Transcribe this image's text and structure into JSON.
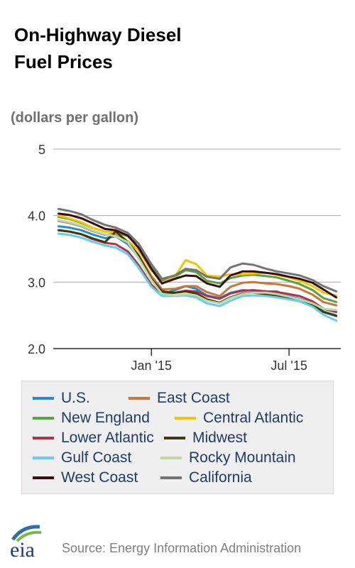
{
  "title": "On-Highway Diesel\nFuel Prices",
  "units": "(dollars per gallon)",
  "source": "Source: Energy Information Administration",
  "logo_text": "eia",
  "chart_data": {
    "type": "line",
    "ylim": [
      2.0,
      5.0
    ],
    "y_ticks": [
      {
        "value": 5.0,
        "label": "5"
      },
      {
        "value": 4.0,
        "label": "4.0"
      },
      {
        "value": 3.0,
        "label": "3.0"
      },
      {
        "value": 2.0,
        "label": "2.0"
      }
    ],
    "x": [
      "2014-09-01",
      "2014-09-15",
      "2014-10-01",
      "2014-10-15",
      "2014-11-01",
      "2014-11-15",
      "2014-12-01",
      "2014-12-15",
      "2015-01-01",
      "2015-01-15",
      "2015-02-01",
      "2015-02-15",
      "2015-03-01",
      "2015-03-15",
      "2015-04-01",
      "2015-04-15",
      "2015-05-01",
      "2015-05-15",
      "2015-06-01",
      "2015-06-15",
      "2015-07-01",
      "2015-07-15",
      "2015-08-01",
      "2015-08-15",
      "2015-09-01"
    ],
    "x_ticks": [
      {
        "value": "2015-01-01",
        "label": "Jan '15"
      },
      {
        "value": "2015-07-01",
        "label": "Jul '15"
      }
    ],
    "grid": true,
    "legend_position": "bottom",
    "series": [
      {
        "name": "U.S.",
        "color": "#1f8fd1",
        "values": [
          3.84,
          3.82,
          3.78,
          3.72,
          3.66,
          3.69,
          3.57,
          3.38,
          3.05,
          2.82,
          2.88,
          2.94,
          2.9,
          2.8,
          2.76,
          2.84,
          2.88,
          2.87,
          2.86,
          2.86,
          2.79,
          2.75,
          2.68,
          2.56,
          2.5
        ]
      },
      {
        "name": "East Coast",
        "color": "#c8763a",
        "values": [
          3.92,
          3.89,
          3.84,
          3.77,
          3.71,
          3.72,
          3.6,
          3.41,
          3.09,
          2.89,
          2.9,
          2.94,
          2.94,
          2.85,
          2.79,
          2.93,
          2.99,
          3.0,
          2.98,
          2.97,
          2.94,
          2.9,
          2.81,
          2.7,
          2.65
        ]
      },
      {
        "name": "New England",
        "color": "#57a43a",
        "values": [
          3.98,
          3.95,
          3.89,
          3.82,
          3.76,
          3.75,
          3.69,
          3.58,
          3.25,
          3.02,
          3.08,
          3.18,
          3.15,
          3.02,
          2.98,
          3.06,
          3.1,
          3.11,
          3.09,
          3.07,
          3.02,
          2.97,
          2.88,
          2.76,
          2.7
        ]
      },
      {
        "name": "Central Atlantic",
        "color": "#f3c500",
        "values": [
          4.0,
          3.96,
          3.9,
          3.82,
          3.76,
          3.74,
          3.62,
          3.48,
          3.18,
          2.99,
          3.08,
          3.33,
          3.27,
          3.1,
          3.08,
          3.12,
          3.12,
          3.13,
          3.14,
          3.11,
          3.07,
          3.02,
          2.94,
          2.84,
          2.8
        ]
      },
      {
        "name": "Lower Atlantic",
        "color": "#b03349",
        "values": [
          3.78,
          3.76,
          3.72,
          3.65,
          3.59,
          3.57,
          3.46,
          3.26,
          2.96,
          2.81,
          2.84,
          2.87,
          2.86,
          2.79,
          2.75,
          2.83,
          2.87,
          2.88,
          2.86,
          2.85,
          2.82,
          2.79,
          2.71,
          2.6,
          2.55
        ]
      },
      {
        "name": "Midwest",
        "color": "#3f3a0f",
        "values": [
          3.78,
          3.76,
          3.72,
          3.66,
          3.6,
          3.76,
          3.6,
          3.4,
          3.05,
          2.86,
          2.84,
          2.86,
          2.83,
          2.74,
          2.69,
          2.77,
          2.83,
          2.84,
          2.82,
          2.8,
          2.77,
          2.73,
          2.66,
          2.55,
          2.49
        ]
      },
      {
        "name": "Gulf Coast",
        "color": "#66ccf2",
        "values": [
          3.73,
          3.71,
          3.67,
          3.61,
          3.55,
          3.52,
          3.42,
          3.22,
          2.93,
          2.79,
          2.79,
          2.8,
          2.77,
          2.68,
          2.64,
          2.72,
          2.79,
          2.8,
          2.79,
          2.77,
          2.74,
          2.71,
          2.63,
          2.51,
          2.42
        ]
      },
      {
        "name": "Rocky Mountain",
        "color": "#bcd8a5",
        "values": [
          3.93,
          3.9,
          3.85,
          3.78,
          3.72,
          3.69,
          3.6,
          3.36,
          3.03,
          2.82,
          2.8,
          2.82,
          2.8,
          2.72,
          2.68,
          2.76,
          2.82,
          2.84,
          2.84,
          2.82,
          2.78,
          2.74,
          2.68,
          2.6,
          2.58
        ]
      },
      {
        "name": "West Coast",
        "color": "#3b0a10",
        "values": [
          4.03,
          4.01,
          3.96,
          3.89,
          3.8,
          3.78,
          3.7,
          3.52,
          3.2,
          2.98,
          3.05,
          3.1,
          3.09,
          2.98,
          2.93,
          3.1,
          3.16,
          3.16,
          3.14,
          3.12,
          3.08,
          3.05,
          2.99,
          2.89,
          2.77
        ]
      },
      {
        "name": "California",
        "color": "#747474",
        "values": [
          4.1,
          4.07,
          4.02,
          3.94,
          3.86,
          3.82,
          3.74,
          3.58,
          3.27,
          3.05,
          3.1,
          3.2,
          3.18,
          3.08,
          3.05,
          3.22,
          3.28,
          3.26,
          3.2,
          3.16,
          3.13,
          3.1,
          3.03,
          2.94,
          2.86
        ]
      }
    ]
  }
}
